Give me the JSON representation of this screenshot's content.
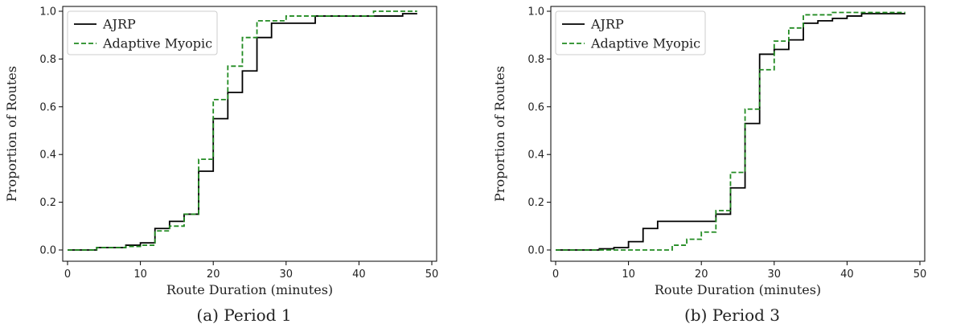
{
  "figure": {
    "captions": [
      "(a) Period 1",
      "(b) Period 3"
    ]
  },
  "chart_data": [
    {
      "type": "line",
      "step": "post",
      "xlabel": "Route Duration (minutes)",
      "ylabel": "Proportion of Routes",
      "xlim": [
        0,
        50
      ],
      "ylim": [
        0,
        1.0
      ],
      "xticks": [
        0,
        10,
        20,
        30,
        40,
        50
      ],
      "yticks": [
        0.0,
        0.2,
        0.4,
        0.6,
        0.8,
        1.0
      ],
      "legend": "top-left",
      "grid": false,
      "series": [
        {
          "name": "AJRP",
          "color": "#000000",
          "dash": "solid",
          "x": [
            0,
            4,
            8,
            10,
            12,
            14,
            16,
            18,
            20,
            22,
            24,
            26,
            28,
            30,
            34,
            46,
            48
          ],
          "y": [
            0.0,
            0.01,
            0.02,
            0.03,
            0.09,
            0.12,
            0.15,
            0.33,
            0.55,
            0.66,
            0.75,
            0.89,
            0.95,
            0.95,
            0.98,
            0.99,
            0.99
          ]
        },
        {
          "name": "Adaptive Myopic",
          "color": "#228B22",
          "dash": "dashed",
          "x": [
            0,
            4,
            8,
            10,
            12,
            14,
            16,
            18,
            20,
            22,
            24,
            26,
            28,
            30,
            34,
            42,
            48
          ],
          "y": [
            0.0,
            0.01,
            0.015,
            0.02,
            0.08,
            0.1,
            0.15,
            0.38,
            0.63,
            0.77,
            0.89,
            0.96,
            0.96,
            0.98,
            0.98,
            1.0,
            1.0
          ]
        }
      ]
    },
    {
      "type": "line",
      "step": "post",
      "xlabel": "Route Duration (minutes)",
      "ylabel": "Proportion of Routes",
      "xlim": [
        0,
        50
      ],
      "ylim": [
        0,
        1.0
      ],
      "xticks": [
        0,
        10,
        20,
        30,
        40,
        50
      ],
      "yticks": [
        0.0,
        0.2,
        0.4,
        0.6,
        0.8,
        1.0
      ],
      "legend": "top-left",
      "grid": false,
      "series": [
        {
          "name": "AJRP",
          "color": "#000000",
          "dash": "solid",
          "x": [
            0,
            6,
            8,
            10,
            12,
            14,
            16,
            18,
            20,
            22,
            24,
            26,
            28,
            30,
            32,
            34,
            36,
            38,
            40,
            42,
            48
          ],
          "y": [
            0.0,
            0.005,
            0.01,
            0.035,
            0.09,
            0.12,
            0.12,
            0.12,
            0.12,
            0.15,
            0.26,
            0.53,
            0.82,
            0.84,
            0.88,
            0.95,
            0.96,
            0.97,
            0.98,
            0.99,
            0.99
          ]
        },
        {
          "name": "Adaptive Myopic",
          "color": "#228B22",
          "dash": "dashed",
          "x": [
            0,
            14,
            16,
            18,
            20,
            22,
            24,
            26,
            28,
            30,
            32,
            34,
            38,
            48
          ],
          "y": [
            0.0,
            0.0,
            0.02,
            0.045,
            0.075,
            0.165,
            0.325,
            0.59,
            0.755,
            0.875,
            0.93,
            0.985,
            0.995,
            0.995
          ]
        }
      ]
    }
  ]
}
